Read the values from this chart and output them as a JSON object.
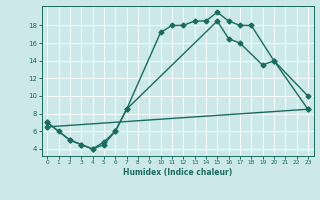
{
  "title": "",
  "xlabel": "Humidex (Indice chaleur)",
  "bg_color": "#cce8e8",
  "grid_color": "#ffffff",
  "line_color": "#1a6b60",
  "xlim": [
    -0.5,
    23.5
  ],
  "ylim": [
    3.2,
    20.2
  ],
  "yticks": [
    4,
    6,
    8,
    10,
    12,
    14,
    16,
    18
  ],
  "xticks": [
    0,
    1,
    2,
    3,
    4,
    5,
    6,
    7,
    8,
    9,
    10,
    11,
    12,
    13,
    14,
    15,
    16,
    17,
    18,
    19,
    20,
    21,
    22,
    23
  ],
  "line1_x": [
    0,
    1,
    2,
    3,
    4,
    5,
    6,
    7,
    10,
    11,
    12,
    13,
    14,
    15,
    16,
    17,
    18,
    20,
    23
  ],
  "line1_y": [
    7,
    6,
    5,
    4.5,
    4.0,
    4.8,
    6.0,
    8.5,
    17.2,
    18.0,
    18.0,
    18.5,
    18.5,
    19.5,
    18.5,
    18.0,
    18.0,
    14.0,
    8.5
  ],
  "line2_x": [
    0,
    2,
    3,
    4,
    5,
    6,
    7,
    15,
    16,
    17,
    19,
    20,
    23
  ],
  "line2_y": [
    7,
    5,
    4.5,
    4.0,
    4.5,
    6.0,
    8.5,
    18.5,
    16.5,
    16.0,
    13.5,
    14.0,
    10.0
  ],
  "line3_x": [
    0,
    23
  ],
  "line3_y": [
    6.5,
    8.5
  ],
  "markersize": 2.5,
  "linewidth": 1.0
}
